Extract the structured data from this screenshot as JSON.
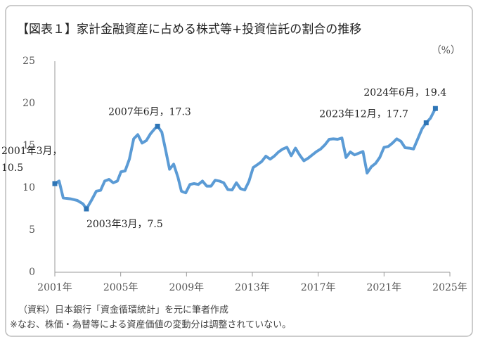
{
  "chart_data": {
    "type": "line",
    "title": "【図表１】家計金融資産に占める株式等+投資信託の割合の推移",
    "unit_label": "（%）",
    "notes": [
      "（資料）日本銀行「資金循環統計」を元に筆者作成",
      "※なお、株価・為替等による資産価値の変動分は調整されていない。"
    ],
    "xlim": [
      2001,
      2025
    ],
    "xticks": [
      {
        "value": 2001,
        "label": "2001年"
      },
      {
        "value": 2005,
        "label": "2005年"
      },
      {
        "value": 2009,
        "label": "2009年"
      },
      {
        "value": 2013,
        "label": "2013年"
      },
      {
        "value": 2017,
        "label": "2017年"
      },
      {
        "value": 2021,
        "label": "2021年"
      },
      {
        "value": 2025,
        "label": "2025年"
      }
    ],
    "ylim": [
      0,
      25
    ],
    "yticks": [
      0,
      5,
      10,
      15,
      20,
      25
    ],
    "grid": false,
    "x": [
      2001.0,
      2001.26,
      2001.51,
      2001.94,
      2002.37,
      2002.71,
      2002.92,
      2003.22,
      2003.52,
      2003.78,
      2004.03,
      2004.29,
      2004.55,
      2004.8,
      2005.02,
      2005.27,
      2005.53,
      2005.79,
      2006.04,
      2006.3,
      2006.56,
      2006.81,
      2007.07,
      2007.24,
      2007.5,
      2007.75,
      2007.97,
      2008.22,
      2008.48,
      2008.69,
      2008.95,
      2009.21,
      2009.46,
      2009.72,
      2009.97,
      2010.23,
      2010.49,
      2010.74,
      2011.0,
      2011.26,
      2011.51,
      2011.77,
      2012.03,
      2012.28,
      2012.54,
      2012.79,
      2013.05,
      2013.31,
      2013.56,
      2013.82,
      2014.08,
      2014.33,
      2014.59,
      2014.85,
      2015.1,
      2015.36,
      2015.62,
      2015.87,
      2016.13,
      2016.38,
      2016.64,
      2016.9,
      2017.15,
      2017.41,
      2017.67,
      2017.92,
      2018.18,
      2018.44,
      2018.69,
      2018.95,
      2019.21,
      2019.46,
      2019.72,
      2019.97,
      2020.23,
      2020.49,
      2020.74,
      2021.0,
      2021.26,
      2021.51,
      2021.77,
      2022.03,
      2022.28,
      2022.54,
      2022.79,
      2023.05,
      2023.31,
      2023.56,
      2023.82,
      2024.12
    ],
    "series": [
      {
        "color": "#5b9bd5",
        "values": [
          10.5,
          10.8,
          8.8,
          8.7,
          8.5,
          8.1,
          7.5,
          8.5,
          9.6,
          9.7,
          10.8,
          11.0,
          10.6,
          10.8,
          11.9,
          12.0,
          13.4,
          15.8,
          16.3,
          15.3,
          15.6,
          16.4,
          17.0,
          17.3,
          16.6,
          14.3,
          12.2,
          12.8,
          11.25,
          9.6,
          9.4,
          10.4,
          10.5,
          10.4,
          10.8,
          10.2,
          10.2,
          10.9,
          10.8,
          10.6,
          9.8,
          9.75,
          10.6,
          9.9,
          9.75,
          10.75,
          12.4,
          12.75,
          13.1,
          13.75,
          13.4,
          13.75,
          14.25,
          14.6,
          14.8,
          13.8,
          14.7,
          13.9,
          13.2,
          13.5,
          13.9,
          14.3,
          14.6,
          15.1,
          15.75,
          15.8,
          15.75,
          15.9,
          13.6,
          14.25,
          13.9,
          14.1,
          14.3,
          11.75,
          12.5,
          12.9,
          13.6,
          14.8,
          14.9,
          15.3,
          15.8,
          15.5,
          14.75,
          14.7,
          14.6,
          15.8,
          17.0,
          17.7,
          18.25,
          19.4
        ]
      }
    ],
    "annotations": [
      {
        "index": 0,
        "lines": [
          "2001年3月，",
          "10.5"
        ]
      },
      {
        "index": 6,
        "lines": [
          "2003年3月，7.5"
        ]
      },
      {
        "index": 23,
        "lines": [
          "2007年6月，17.3"
        ]
      },
      {
        "index": 87,
        "lines": [
          "2023年12月，17.7"
        ]
      },
      {
        "index": 89,
        "lines": [
          "2024年6月，19.4"
        ]
      }
    ]
  }
}
